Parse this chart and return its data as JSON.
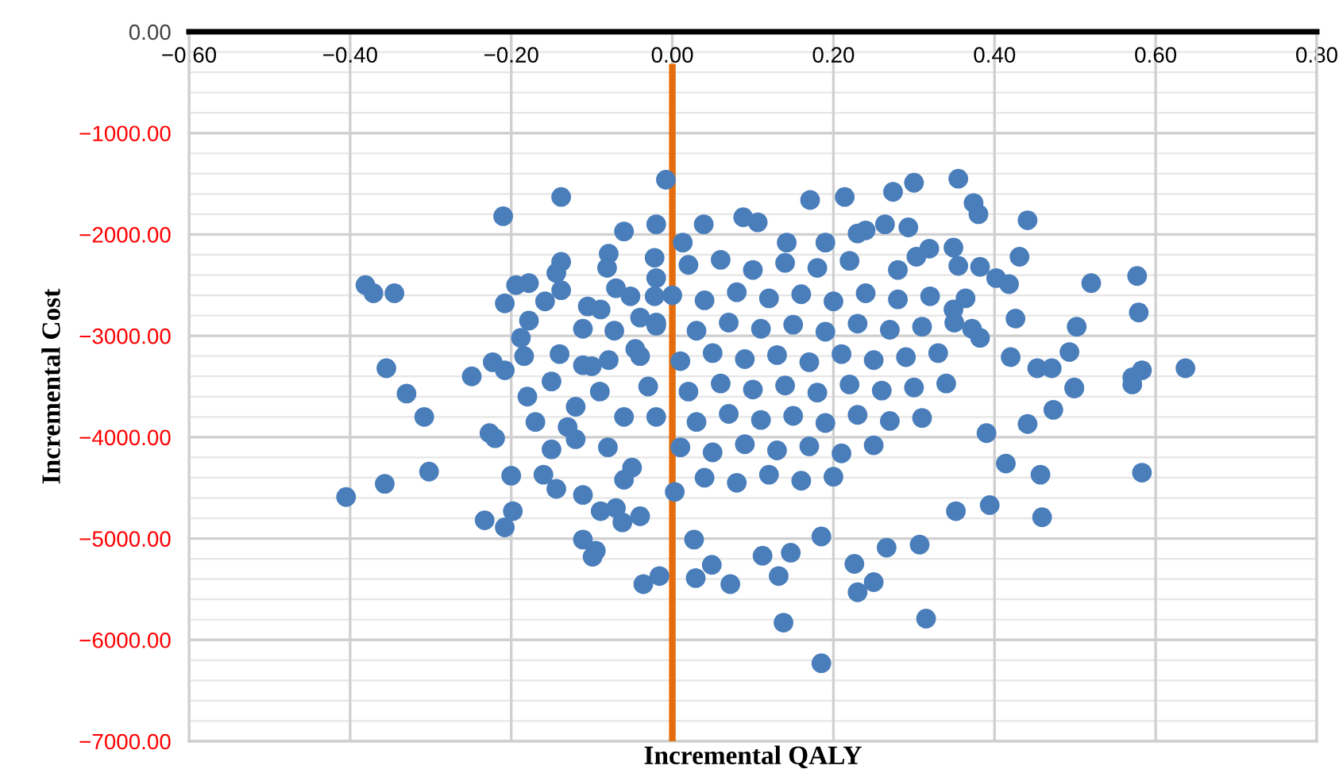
{
  "chart_data": {
    "type": "scatter",
    "xlabel": "Incremental QALY",
    "ylabel": "Incremental Cost",
    "xlim": [
      -0.6,
      0.8
    ],
    "ylim": [
      -7000,
      0
    ],
    "xticks": [
      {
        "value": -0.6,
        "label": "−0.60"
      },
      {
        "value": -0.4,
        "label": "−0.40"
      },
      {
        "value": -0.2,
        "label": "−0.20"
      },
      {
        "value": 0,
        "label": "0.00"
      },
      {
        "value": 0.2,
        "label": "0.20"
      },
      {
        "value": 0.4,
        "label": "0.40"
      },
      {
        "value": 0.6,
        "label": "0.60"
      },
      {
        "value": 0.8,
        "label": "0.80"
      }
    ],
    "yticks": [
      {
        "value": 0,
        "label": "0.00"
      },
      {
        "value": -1000,
        "label": "−1000.00"
      },
      {
        "value": -2000,
        "label": "−2000.00"
      },
      {
        "value": -3000,
        "label": "−3000.00"
      },
      {
        "value": -4000,
        "label": "−4000.00"
      },
      {
        "value": -5000,
        "label": "−5000.00"
      },
      {
        "value": -6000,
        "label": "−6000.00"
      },
      {
        "value": -7000,
        "label": "−7000.00"
      }
    ],
    "grid": true,
    "marker": "circle",
    "ref_lines": [
      {
        "axis": "x",
        "value": 0,
        "color": "#e46c0a"
      }
    ],
    "series": [
      {
        "color": "#4a7ebb",
        "x": [
          0.571,
          0.583,
          0.459,
          0.315,
          0.185,
          0.138,
          0.499,
          0.473,
          0.441,
          0.39,
          0.414,
          0.457,
          0.394,
          0.352,
          0.307,
          0.25,
          0.23,
          0.226,
          0.266,
          0.132,
          0.072,
          0.029,
          0.049,
          0.027,
          0.112,
          0.147,
          0.185,
          -0.405,
          -0.357,
          -0.302,
          -0.308,
          -0.33,
          -0.2,
          -0.198,
          -0.208,
          -0.233,
          -0.111,
          -0.095,
          -0.099,
          -0.036,
          -0.016,
          -0.111,
          -0.144,
          -0.16,
          -0.07,
          -0.04,
          -0.062,
          -0.089,
          -0.227,
          -0.22,
          -0.15,
          -0.12,
          0.003,
          -0.06,
          -0.008,
          -0.138,
          -0.21,
          -0.06,
          -0.02,
          -0.022,
          -0.02,
          -0.079,
          -0.081,
          -0.138,
          -0.144,
          -0.194,
          -0.178,
          -0.208,
          -0.138,
          -0.07,
          -0.052,
          -0.022,
          -0.105,
          -0.089,
          -0.158,
          -0.178,
          -0.188,
          -0.111,
          -0.072,
          -0.04,
          -0.02,
          -0.381,
          -0.371,
          -0.345,
          -0.355,
          -0.249,
          -0.223,
          -0.208,
          -0.184,
          -0.14,
          -0.111,
          -0.079,
          -0.046,
          0.171,
          0.214,
          0.274,
          0.3,
          0.355,
          0.374,
          0.38,
          0.441,
          0.088,
          0.039,
          0.106,
          0.23,
          0.24,
          0.264,
          0.293,
          0.319,
          0.349,
          0.355,
          0.382,
          0.402,
          0.418,
          0.431,
          0.52,
          0.577,
          0.579,
          0.502,
          0.493,
          0.426,
          0.42,
          0.453,
          0.471,
          0.499,
          0.571,
          0.583,
          0.637,
          0.364,
          0.349,
          0.372,
          0.382,
          0.303,
          0.28,
          0.19,
          0.142,
          0.013,
          0.02,
          0.06,
          0.1,
          0.14,
          0.18,
          0.22,
          0.0,
          0.04,
          0.08,
          0.12,
          0.16,
          0.2,
          0.24,
          0.28,
          0.32,
          -0.02,
          0.03,
          0.07,
          0.11,
          0.15,
          0.19,
          0.23,
          0.27,
          0.31,
          0.35,
          -0.04,
          0.01,
          0.05,
          0.09,
          0.13,
          0.17,
          0.21,
          0.25,
          0.29,
          0.33,
          -0.03,
          0.02,
          0.06,
          0.1,
          0.14,
          0.18,
          0.22,
          0.26,
          0.3,
          0.34,
          -0.02,
          0.03,
          0.07,
          0.11,
          0.15,
          0.19,
          0.23,
          0.27,
          0.31,
          0.01,
          0.05,
          0.09,
          0.13,
          0.17,
          0.21,
          0.25,
          0.04,
          0.08,
          0.12,
          0.16,
          0.2,
          -0.18,
          -0.15,
          -0.12,
          -0.09,
          -0.06,
          -0.17,
          -0.13,
          -0.08,
          -0.05,
          -0.1
        ],
        "values": [
          -3480,
          -4350,
          -4790,
          -5790,
          -6230,
          -5830,
          -3520,
          -3730,
          -3870,
          -3960,
          -4260,
          -4370,
          -4670,
          -4730,
          -5060,
          -5430,
          -5530,
          -5250,
          -5090,
          -5370,
          -5450,
          -5390,
          -5260,
          -5010,
          -5170,
          -5140,
          -4980,
          -4590,
          -4460,
          -4340,
          -3800,
          -3570,
          -4380,
          -4730,
          -4890,
          -4820,
          -5010,
          -5120,
          -5180,
          -5450,
          -5370,
          -4570,
          -4510,
          -4370,
          -4700,
          -4780,
          -4840,
          -4730,
          -3960,
          -4010,
          -4120,
          -4020,
          -4540,
          -4420,
          -1460,
          -1630,
          -1820,
          -1970,
          -1900,
          -2230,
          -2430,
          -2190,
          -2330,
          -2270,
          -2380,
          -2500,
          -2480,
          -2680,
          -2550,
          -2530,
          -2610,
          -2610,
          -2710,
          -2740,
          -2660,
          -2850,
          -3020,
          -2930,
          -2950,
          -2820,
          -2870,
          -2500,
          -2580,
          -2580,
          -3320,
          -3400,
          -3260,
          -3340,
          -3200,
          -3180,
          -3290,
          -3240,
          -3130,
          -1660,
          -1630,
          -1580,
          -1490,
          -1450,
          -1690,
          -1800,
          -1860,
          -1830,
          -1900,
          -1880,
          -1990,
          -1960,
          -1900,
          -1930,
          -2140,
          -2130,
          -2310,
          -2320,
          -2430,
          -2490,
          -2220,
          -2480,
          -2410,
          -2770,
          -2910,
          -3160,
          -2830,
          -3210,
          -3320,
          -3320,
          -3510,
          -3410,
          -3340,
          -3320,
          -2630,
          -2740,
          -2930,
          -3020,
          -2220,
          -2350,
          -2080,
          -2080,
          -2080,
          -2300,
          -2250,
          -2350,
          -2280,
          -2330,
          -2260,
          -2600,
          -2650,
          -2570,
          -2630,
          -2590,
          -2660,
          -2580,
          -2640,
          -2610,
          -2900,
          -2950,
          -2870,
          -2930,
          -2890,
          -2960,
          -2880,
          -2940,
          -2910,
          -2870,
          -3200,
          -3250,
          -3170,
          -3230,
          -3190,
          -3260,
          -3180,
          -3240,
          -3210,
          -3170,
          -3500,
          -3550,
          -3470,
          -3530,
          -3490,
          -3560,
          -3480,
          -3540,
          -3510,
          -3470,
          -3800,
          -3850,
          -3770,
          -3830,
          -3790,
          -3860,
          -3780,
          -3840,
          -3810,
          -4100,
          -4150,
          -4070,
          -4130,
          -4090,
          -4160,
          -4080,
          -4400,
          -4450,
          -4370,
          -4430,
          -4390,
          -3600,
          -3450,
          -3700,
          -3550,
          -3800,
          -3850,
          -3900,
          -4100,
          -4300,
          -3300
        ]
      }
    ]
  }
}
